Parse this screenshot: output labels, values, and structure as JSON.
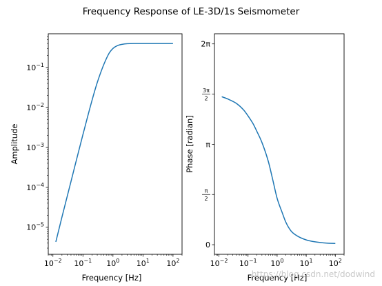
{
  "figure": {
    "suptitle": "Frequency Response of LE-3D/1s Seismometer",
    "watermark": "https://blog.csdn.net/dodwind",
    "line_color": "#1f77b4"
  },
  "chart_data": [
    {
      "type": "line",
      "xscale": "log",
      "yscale": "log",
      "xlabel": "Frequency [Hz]",
      "ylabel": "Amplitude",
      "xlim": [
        0.007,
        200
      ],
      "ylim": [
        2.1e-06,
        0.7
      ],
      "xticks": [
        0.01,
        0.1,
        1,
        10,
        100
      ],
      "xtick_labels": [
        {
          "base": "10",
          "exp": "−2"
        },
        {
          "base": "10",
          "exp": "−1"
        },
        {
          "base": "10",
          "exp": "0"
        },
        {
          "base": "10",
          "exp": "1"
        },
        {
          "base": "10",
          "exp": "2"
        }
      ],
      "yticks": [
        1e-05,
        0.0001,
        0.001,
        0.01,
        0.1
      ],
      "ytick_labels": [
        {
          "base": "10",
          "exp": "−5"
        },
        {
          "base": "10",
          "exp": "−4"
        },
        {
          "base": "10",
          "exp": "−3"
        },
        {
          "base": "10",
          "exp": "−2"
        },
        {
          "base": "10",
          "exp": "−1"
        }
      ],
      "grid": false,
      "series": [
        {
          "x": [
            0.0125,
            0.02,
            0.04,
            0.1,
            0.3,
            0.7,
            1.0,
            1.5,
            2.0,
            3.0,
            5.0,
            10,
            30,
            100
          ],
          "y": [
            4.3e-06,
            1.8e-05,
            0.00014,
            0.0021,
            0.042,
            0.21,
            0.3,
            0.36,
            0.38,
            0.395,
            0.4,
            0.4,
            0.4,
            0.4
          ]
        }
      ]
    },
    {
      "type": "line",
      "xscale": "log",
      "yscale": "linear",
      "xlabel": "Frequency [Hz]",
      "ylabel": "Phase [radian]",
      "xlim": [
        0.007,
        200
      ],
      "ylim": [
        -0.3,
        6.6
      ],
      "xticks": [
        0.01,
        0.1,
        1,
        10,
        100
      ],
      "xtick_labels": [
        {
          "base": "10",
          "exp": "−2"
        },
        {
          "base": "10",
          "exp": "−1"
        },
        {
          "base": "10",
          "exp": "0"
        },
        {
          "base": "10",
          "exp": "1"
        },
        {
          "base": "10",
          "exp": "2"
        }
      ],
      "yticks": [
        0,
        1.5708,
        3.1416,
        4.7124,
        6.2832
      ],
      "ytick_labels": [
        "0",
        "π/2",
        "π",
        "3π/2",
        "2π"
      ],
      "grid": false,
      "series": [
        {
          "x": [
            0.0125,
            0.02,
            0.04,
            0.07,
            0.1,
            0.15,
            0.2,
            0.3,
            0.5,
            0.7,
            1.0,
            1.5,
            2.0,
            3.0,
            5.0,
            10,
            20,
            50,
            100
          ],
          "y": [
            4.63,
            4.56,
            4.42,
            4.22,
            4.03,
            3.78,
            3.55,
            3.2,
            2.6,
            2.05,
            1.45,
            1.0,
            0.7,
            0.43,
            0.27,
            0.15,
            0.09,
            0.05,
            0.04
          ]
        }
      ]
    }
  ]
}
